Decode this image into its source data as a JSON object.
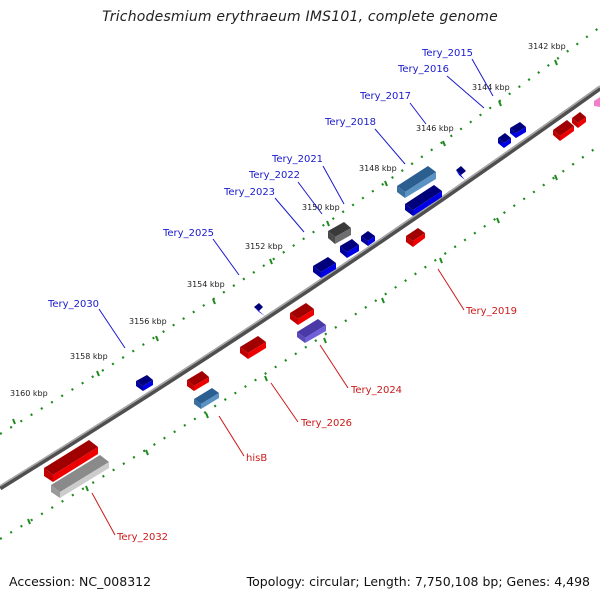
{
  "title": "Trichodesmium erythraeum IMS101, complete genome",
  "footer": {
    "accession": "Accession: NC_008312",
    "topology": "Topology: circular; Length: 7,750,108 bp; Genes: 4,498"
  },
  "colors": {
    "backbone": "#808080",
    "ticks": "#1f8a1f",
    "forward_label": "#1a1acc",
    "reverse_label": "#cc1a1a",
    "forward_gene": "#0000e6",
    "reverse_gene": "#e60000",
    "rna_gene": "#4a82b4",
    "gray_gene": "#606060",
    "purple_gene": "#7060d8",
    "pink_gene": "#f080c8"
  },
  "kbp_labels": [
    "3142 kbp",
    "3144 kbp",
    "3146 kbp",
    "3148 kbp",
    "3150 kbp",
    "3152 kbp",
    "3154 kbp",
    "3156 kbp",
    "3158 kbp",
    "3160 kbp"
  ],
  "forward_labels": [
    "Tery_2015",
    "Tery_2016",
    "Tery_2017",
    "Tery_2018",
    "Tery_2021",
    "Tery_2022",
    "Tery_2023",
    "Tery_2025",
    "Tery_2030"
  ],
  "reverse_labels": [
    "Tery_2019",
    "Tery_2024",
    "Tery_2026",
    "hisB",
    "Tery_2032"
  ]
}
